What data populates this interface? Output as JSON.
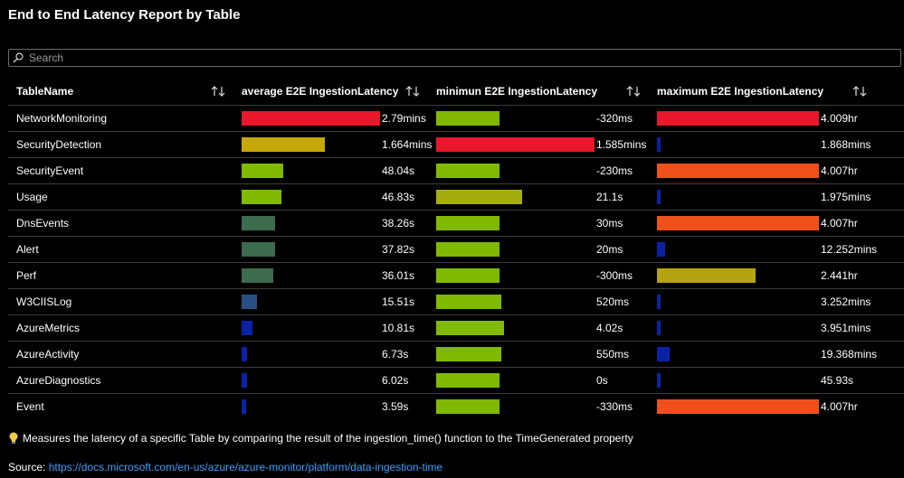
{
  "title": "End to End Latency Report by Table",
  "search": {
    "placeholder": "Search",
    "value": ""
  },
  "columns": {
    "name": "TableName",
    "avg": "average E2E IngestionLatency",
    "min": "minimun E2E IngestionLatency",
    "max": "maximum E2E IngestionLatency"
  },
  "colors": {
    "red": "#e8172b",
    "mustard": "#c6a70a",
    "green": "#7fba00",
    "olive": "#a3ad0e",
    "teal": "#3c6b4d",
    "slate": "#274f83",
    "blue": "#0a23a6",
    "orange": "#f0501b",
    "olivegold": "#b6a310"
  },
  "rows": [
    {
      "name": "NetworkMonitoring",
      "avg": {
        "text": "2.79mins",
        "frac": 1.0,
        "color": "red"
      },
      "min": {
        "text": "-320ms",
        "frac": 0.4,
        "color": "green"
      },
      "max": {
        "text": "4.009hr",
        "frac": 1.0,
        "color": "red"
      }
    },
    {
      "name": "SecurityDetection",
      "avg": {
        "text": "1.664mins",
        "frac": 0.6,
        "color": "mustard"
      },
      "min": {
        "text": "1.585mins",
        "frac": 1.0,
        "color": "red"
      },
      "max": {
        "text": "1.868mins",
        "frac": 0.01,
        "color": "blue"
      }
    },
    {
      "name": "SecurityEvent",
      "avg": {
        "text": "48.04s",
        "frac": 0.3,
        "color": "green"
      },
      "min": {
        "text": "-230ms",
        "frac": 0.4,
        "color": "green"
      },
      "max": {
        "text": "4.007hr",
        "frac": 1.0,
        "color": "orange"
      }
    },
    {
      "name": "Usage",
      "avg": {
        "text": "46.83s",
        "frac": 0.29,
        "color": "green"
      },
      "min": {
        "text": "21.1s",
        "frac": 0.54,
        "color": "olive"
      },
      "max": {
        "text": "1.975mins",
        "frac": 0.01,
        "color": "blue"
      }
    },
    {
      "name": "DnsEvents",
      "avg": {
        "text": "38.26s",
        "frac": 0.24,
        "color": "teal"
      },
      "min": {
        "text": "30ms",
        "frac": 0.4,
        "color": "green"
      },
      "max": {
        "text": "4.007hr",
        "frac": 1.0,
        "color": "orange"
      }
    },
    {
      "name": "Alert",
      "avg": {
        "text": "37.82s",
        "frac": 0.24,
        "color": "teal"
      },
      "min": {
        "text": "20ms",
        "frac": 0.4,
        "color": "green"
      },
      "max": {
        "text": "12.252mins",
        "frac": 0.05,
        "color": "blue"
      }
    },
    {
      "name": "Perf",
      "avg": {
        "text": "36.01s",
        "frac": 0.23,
        "color": "teal"
      },
      "min": {
        "text": "-300ms",
        "frac": 0.4,
        "color": "green"
      },
      "max": {
        "text": "2.441hr",
        "frac": 0.61,
        "color": "olivegold"
      }
    },
    {
      "name": "W3CIISLog",
      "avg": {
        "text": "15.51s",
        "frac": 0.11,
        "color": "slate"
      },
      "min": {
        "text": "520ms",
        "frac": 0.41,
        "color": "green"
      },
      "max": {
        "text": "3.252mins",
        "frac": 0.01,
        "color": "blue"
      }
    },
    {
      "name": "AzureMetrics",
      "avg": {
        "text": "10.81s",
        "frac": 0.08,
        "color": "blue"
      },
      "min": {
        "text": "4.02s",
        "frac": 0.43,
        "color": "green"
      },
      "max": {
        "text": "3.951mins",
        "frac": 0.01,
        "color": "blue"
      }
    },
    {
      "name": "AzureActivity",
      "avg": {
        "text": "6.73s",
        "frac": 0.04,
        "color": "blue"
      },
      "min": {
        "text": "550ms",
        "frac": 0.41,
        "color": "green"
      },
      "max": {
        "text": "19.368mins",
        "frac": 0.08,
        "color": "blue"
      }
    },
    {
      "name": "AzureDiagnostics",
      "avg": {
        "text": "6.02s",
        "frac": 0.04,
        "color": "blue"
      },
      "min": {
        "text": "0s",
        "frac": 0.4,
        "color": "green"
      },
      "max": {
        "text": "45.93s",
        "frac": 0.01,
        "color": "blue"
      }
    },
    {
      "name": "Event",
      "avg": {
        "text": "3.59s",
        "frac": 0.03,
        "color": "blue"
      },
      "min": {
        "text": "-330ms",
        "frac": 0.4,
        "color": "green"
      },
      "max": {
        "text": "4.007hr",
        "frac": 1.0,
        "color": "orange"
      }
    }
  ],
  "note": "Measures the latency of a specific Table by comparing the result of the ingestion_time() function to the TimeGenerated property",
  "source": {
    "label": "Source:",
    "link": "https://docs.microsoft.com/en-us/azure/azure-monitor/platform/data-ingestion-time"
  }
}
